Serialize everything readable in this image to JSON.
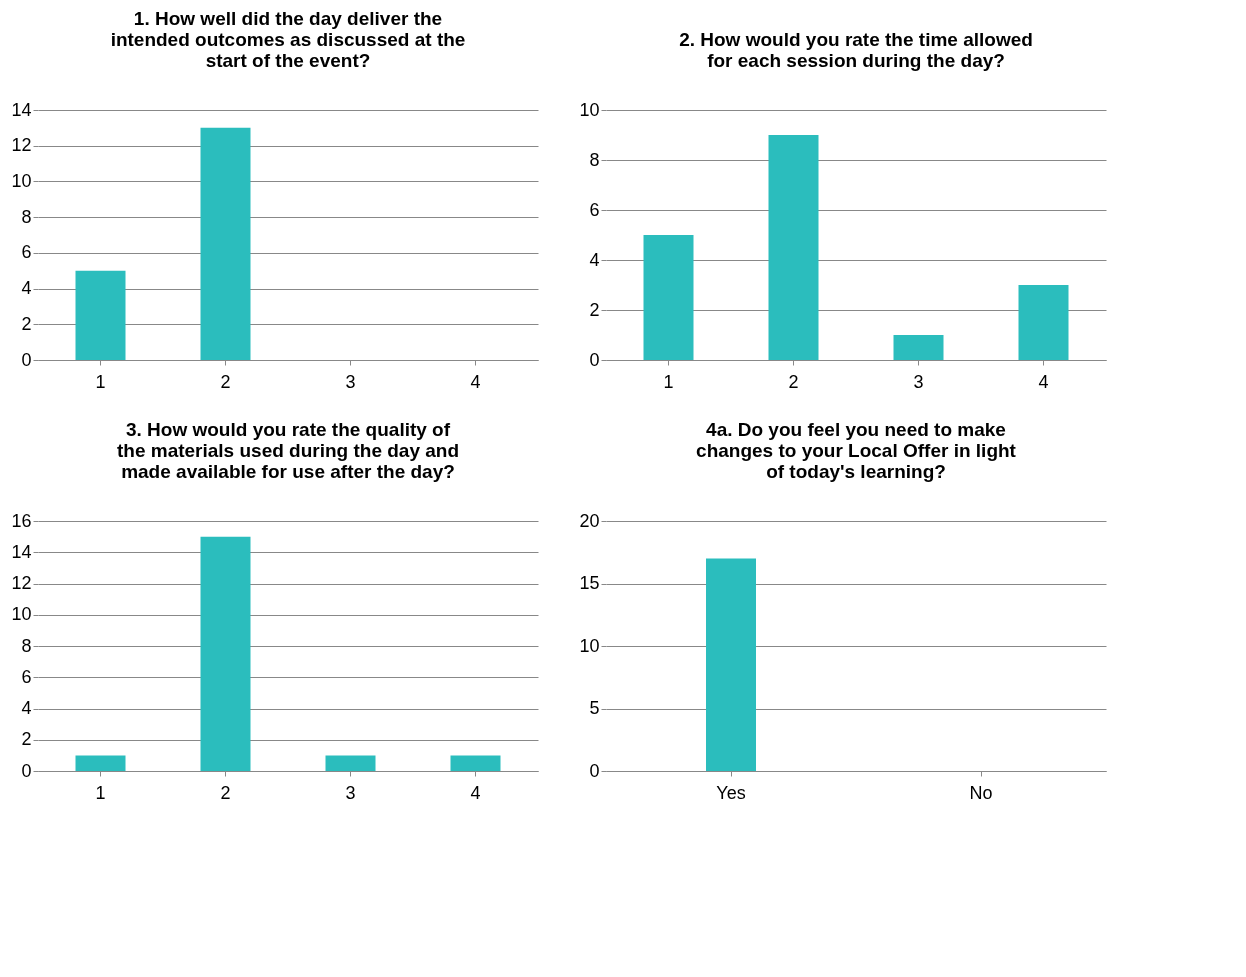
{
  "chart_data": [
    {
      "type": "bar",
      "title": "1. How well did the day deliver the intended outcomes as discussed at the start of the event?",
      "categories": [
        "1",
        "2",
        "3",
        "4"
      ],
      "values": [
        5,
        13,
        0,
        0
      ],
      "color": "#2bbdbd",
      "ylim": [
        0,
        14
      ],
      "yticks": [
        0,
        2,
        4,
        6,
        8,
        10,
        12,
        14
      ],
      "grid": "y"
    },
    {
      "type": "bar",
      "title": "2. How would you rate the time allowed for each session during the day?",
      "categories": [
        "1",
        "2",
        "3",
        "4"
      ],
      "values": [
        5,
        9,
        1,
        3
      ],
      "color": "#2bbdbd",
      "ylim": [
        0,
        10
      ],
      "yticks": [
        0,
        2,
        4,
        6,
        8,
        10
      ],
      "grid": "y"
    },
    {
      "type": "bar",
      "title": "3. How would you rate the quality of the materials used during the day and made available for use after the day?",
      "categories": [
        "1",
        "2",
        "3",
        "4"
      ],
      "values": [
        1,
        15,
        1,
        1
      ],
      "color": "#2bbdbd",
      "ylim": [
        0,
        16
      ],
      "yticks": [
        0,
        2,
        4,
        6,
        8,
        10,
        12,
        14,
        16
      ],
      "grid": "y"
    },
    {
      "type": "bar",
      "title": "4a.  Do you feel you need to make changes to your Local Offer in light of today's learning?",
      "categories": [
        "Yes",
        "No"
      ],
      "values": [
        17,
        0
      ],
      "color": "#2bbdbd",
      "ylim": [
        0,
        20
      ],
      "yticks": [
        0,
        5,
        10,
        15,
        20
      ],
      "grid": "y"
    }
  ]
}
